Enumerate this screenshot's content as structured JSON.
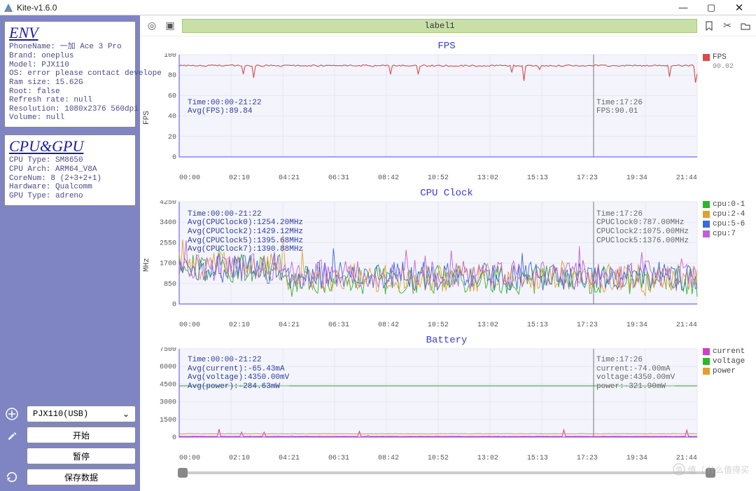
{
  "window": {
    "title": "Kite-v1.6.0"
  },
  "env": {
    "title": "ENV",
    "lines": [
      "PhoneName: 一加 Ace 3 Pro",
      "Brand: oneplus",
      "Model: PJX110",
      "OS: error please contact develope",
      "Ram size: 15.62G",
      "Root: false",
      "Refresh rate: null",
      "Resolution: 1080x2376 560dpi",
      "Volume: null"
    ]
  },
  "cpugpu": {
    "title": "CPU&GPU",
    "lines": [
      "CPU Type: SM8650",
      "CPU Arch: ARM64_V8A",
      "CoreNum: 8 (2+3+2+1)",
      "Hardware: Qualcomm",
      "GPU Type: adreno"
    ]
  },
  "sidebar_ctrls": {
    "device": "PJX110(USB)",
    "start": "开始",
    "pause": "暂停",
    "save": "保存数据"
  },
  "toolbar_label": "label1",
  "xticks": [
    "00:00",
    "02:10",
    "04:21",
    "06:31",
    "08:42",
    "10:52",
    "13:02",
    "15:13",
    "17:23",
    "19:34",
    "21:44"
  ],
  "grid_color": "#e6e6f2",
  "axis_color": "#6a6aff",
  "bg_color": "#f4f4fc",
  "marker_x": 0.8,
  "watermark": "值（ 什么值得买",
  "fps_chart": {
    "title": "FPS",
    "ylabel": "FPS",
    "ylim": [
      0,
      100
    ],
    "yticks": [
      0,
      20,
      40,
      60,
      80,
      100
    ],
    "height": 150,
    "series": {
      "name": "FPS",
      "color": "#d94a4a",
      "value_label": "90.02",
      "avg": 90
    },
    "info_left": "Time:00:00-21:22\nAvg(FPS):89.84",
    "info_right": "Time:17:26\nFPS:90.01"
  },
  "cpu_chart": {
    "title": "CPU Clock",
    "ylabel": "MHz",
    "ylim": [
      0,
      4250
    ],
    "yticks": [
      0,
      850,
      1700,
      2550,
      3400,
      4250
    ],
    "height": 150,
    "series": [
      {
        "name": "cpu:0-1",
        "color": "#2db52d"
      },
      {
        "name": "cpu:2-4",
        "color": "#e0a030"
      },
      {
        "name": "cpu:5-6",
        "color": "#3a6ae0"
      },
      {
        "name": "cpu:7",
        "color": "#c060d6"
      }
    ],
    "info_left": "Time:00:00-21:22\nAvg(CPUClock0):1254.20MHz\nAvg(CPUClock2):1429.12MHz\nAvg(CPUClock5):1395.68MHz\nAvg(CPUClock7):1390.88MHz",
    "info_right": "Time:17:26\nCPUClock0:787.00MHz\nCPUClock2:1075.00MHz\nCPUClock5:1376.00MHz\n"
  },
  "bat_chart": {
    "title": "Battery",
    "ylabel": "",
    "ylim": [
      0,
      7500
    ],
    "yticks": [
      0,
      1500,
      3000,
      4500,
      6000,
      7500
    ],
    "height": 130,
    "series": [
      {
        "name": "current",
        "color": "#d040c0"
      },
      {
        "name": "voltage",
        "color": "#2db52d"
      },
      {
        "name": "power",
        "color": "#e0a030"
      }
    ],
    "info_left": "Time:00:00-21:22\nAvg(current):-65.43mA\nAvg(voltage):4350.00mV\nAvg(power):-284.63mW",
    "info_right": "Time:17:26\ncurrent:-74.00mA\nvoltage:4350.00mV\npower:-321.90mW"
  }
}
